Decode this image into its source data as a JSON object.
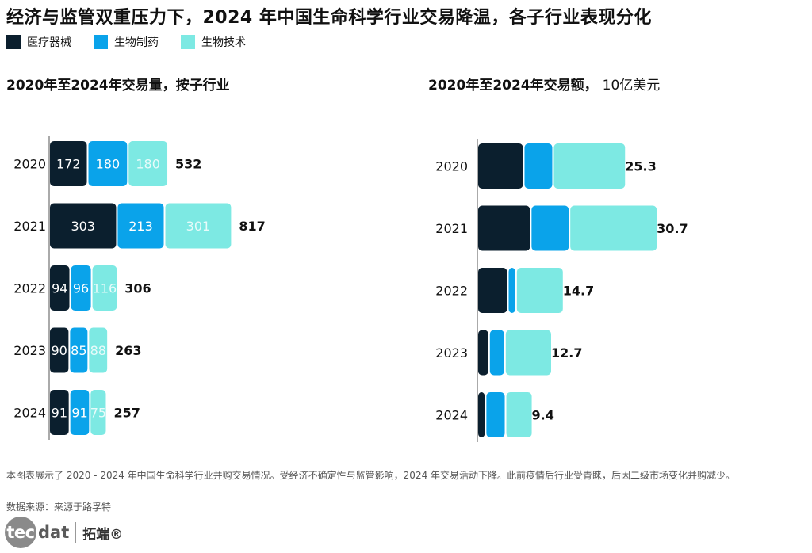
{
  "title": "经济与监管双重压力下，2024 年中国生命科学行业交易降温，各子行业表现分化",
  "legend": [
    {
      "label": "医疗器械",
      "color": "#0b1f2e"
    },
    {
      "label": "生物制药",
      "color": "#0aa3ea"
    },
    {
      "label": "生物技术",
      "color": "#7de9e3"
    }
  ],
  "chart_data": [
    {
      "type": "bar",
      "stacked": true,
      "orientation": "horizontal",
      "title": "2020年至2024年交易量，按子行业",
      "categories": [
        "2020",
        "2021",
        "2022",
        "2023",
        "2024"
      ],
      "series": [
        {
          "name": "医疗器械",
          "values": [
            172,
            303,
            94,
            90,
            91
          ]
        },
        {
          "name": "生物制药",
          "values": [
            180,
            213,
            96,
            85,
            91
          ]
        },
        {
          "name": "生物技术",
          "values": [
            180,
            301,
            116,
            88,
            75
          ]
        }
      ],
      "totals": [
        532,
        817,
        306,
        263,
        257
      ],
      "show_segment_labels": true
    },
    {
      "type": "bar",
      "stacked": true,
      "orientation": "horizontal",
      "title": "2020年至2024年交易额，",
      "unit": "10亿美元",
      "categories": [
        "2020",
        "2021",
        "2022",
        "2023",
        "2024"
      ],
      "series": [
        {
          "name": "医疗器械",
          "values": [
            7.9,
            9.1,
            5.2,
            2.0,
            1.4
          ]
        },
        {
          "name": "生物制药",
          "values": [
            5.0,
            6.6,
            1.4,
            2.7,
            3.4
          ]
        },
        {
          "name": "生物技术",
          "values": [
            12.4,
            15.0,
            8.1,
            8.0,
            4.6
          ]
        }
      ],
      "totals": [
        25.3,
        30.7,
        14.7,
        12.7,
        9.4
      ],
      "show_segment_labels": false
    }
  ],
  "footnote": "本图表展示了 2020 - 2024 年中国生命科学行业并购交易情况。受经济不确定性与监管影响，2024 年交易活动下降。此前疫情后行业受青睐，后因二级市场变化并购减少。",
  "source": "数据来源：来源于路孚特",
  "logo": {
    "badge": "tec",
    "rest": "dat",
    "cn": "拓端®"
  }
}
